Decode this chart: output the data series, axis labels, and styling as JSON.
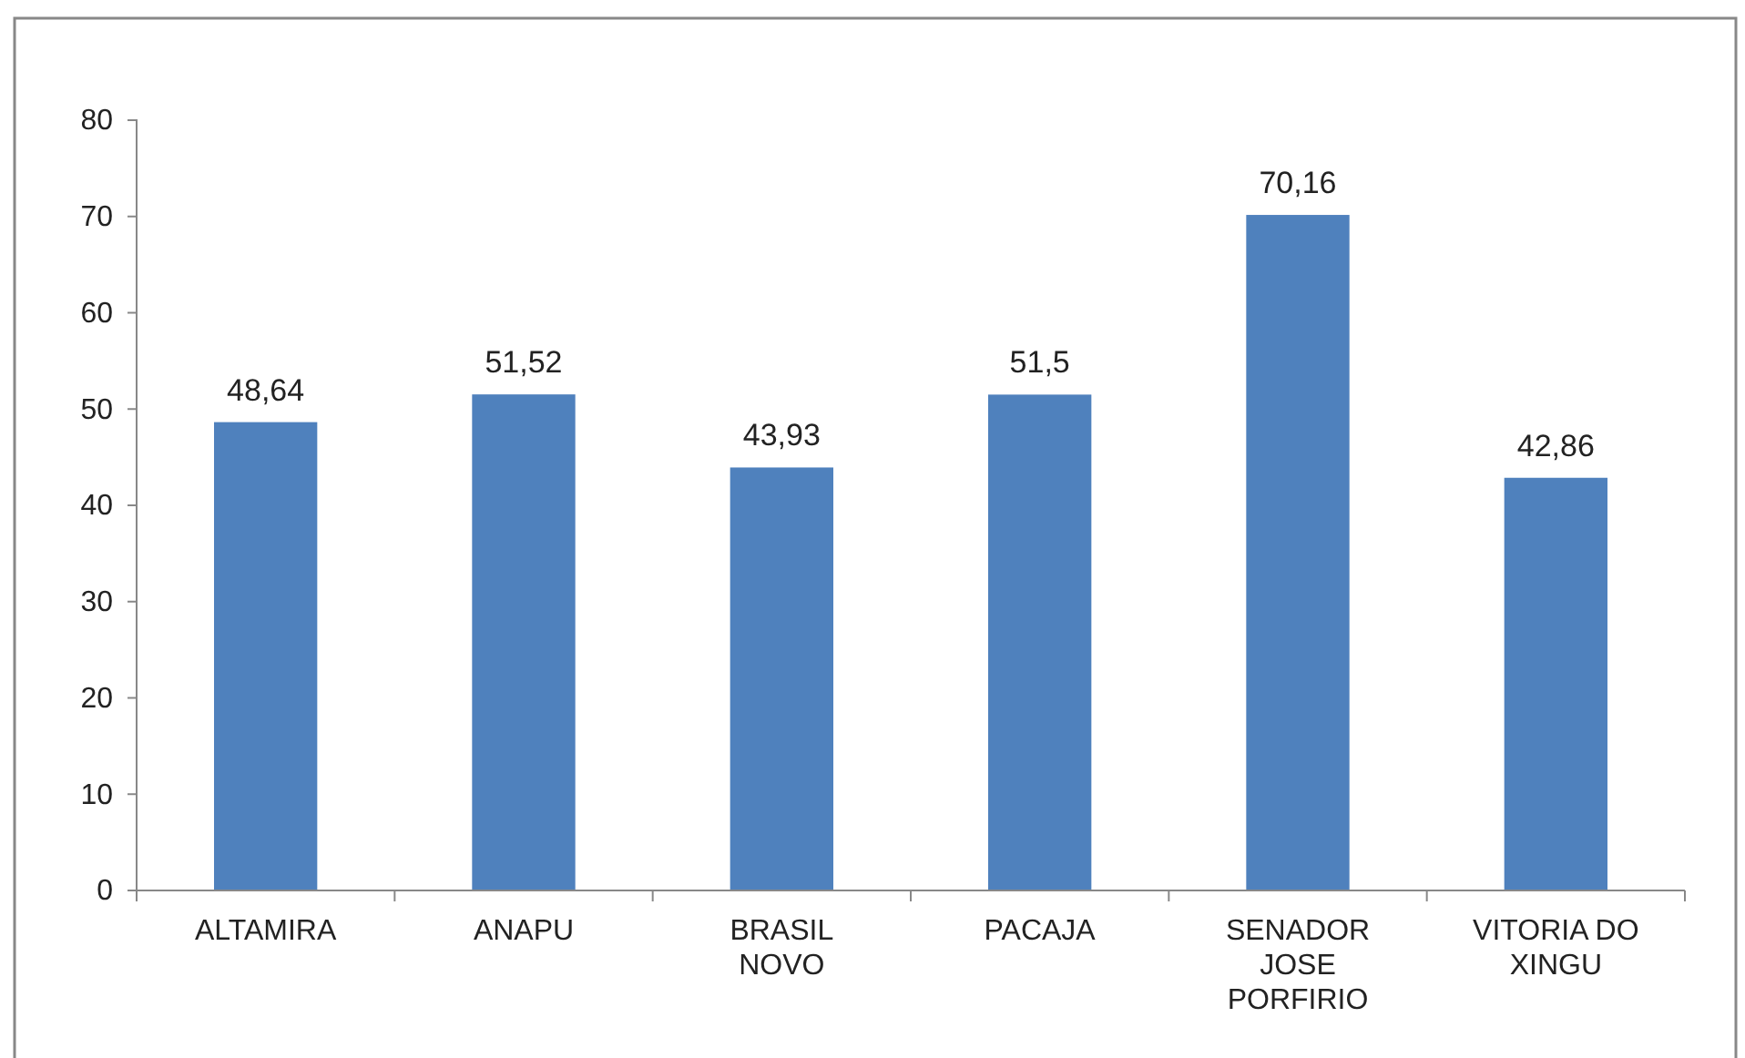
{
  "chart_data": {
    "type": "bar",
    "categories": [
      "ALTAMIRA",
      "ANAPU",
      "BRASIL NOVO",
      "PACAJA",
      "SENADOR JOSE PORFIRIO",
      "VITORIA DO XINGU"
    ],
    "values": [
      48.64,
      51.52,
      43.93,
      51.5,
      70.16,
      42.86
    ],
    "value_labels": [
      "48,64",
      "51,52",
      "43,93",
      "51,5",
      "70,16",
      "42,86"
    ],
    "color": "#4f81bd",
    "ylim": [
      0,
      80
    ],
    "yticks": [
      0,
      10,
      20,
      30,
      40,
      50,
      60,
      70,
      80
    ],
    "grid": false
  }
}
